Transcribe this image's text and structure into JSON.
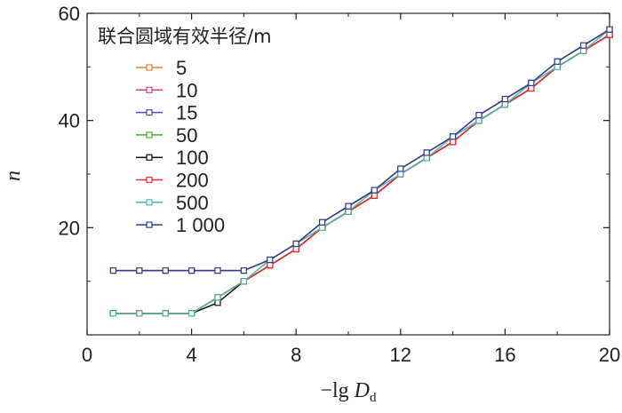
{
  "chart_data": {
    "type": "line",
    "title": "",
    "xlabel": {
      "prefix": "−lg ",
      "var": "D",
      "sub": "d"
    },
    "ylabel": "n",
    "xlim": [
      0,
      20
    ],
    "ylim": [
      0,
      60
    ],
    "xticks": [
      0,
      4,
      8,
      12,
      16,
      20
    ],
    "yticks": [
      20,
      40,
      60
    ],
    "legend_title": "联合圆域有效半径/m",
    "legend_position": "top-left",
    "series": [
      {
        "name": "5",
        "color": "#e8803a",
        "x": [
          1,
          2,
          3,
          4,
          5,
          6,
          7,
          8,
          9,
          10,
          11,
          12,
          13,
          14,
          15,
          16,
          17,
          18,
          19,
          20
        ],
        "y": [
          4,
          4,
          4,
          4,
          7,
          10,
          13,
          16,
          20,
          23,
          26,
          30,
          33,
          36,
          40,
          43,
          46,
          50,
          53,
          56
        ]
      },
      {
        "name": "10",
        "color": "#e0407a",
        "x": [
          1,
          2,
          3,
          4,
          5,
          6,
          7,
          8,
          9,
          10,
          11,
          12,
          13,
          14,
          15,
          16,
          17,
          18,
          19,
          20
        ],
        "y": [
          4,
          4,
          4,
          4,
          7,
          10,
          13,
          16,
          20,
          23,
          26,
          30,
          33,
          36,
          40,
          43,
          46,
          50,
          53,
          56
        ]
      },
      {
        "name": "15",
        "color": "#5a4aa8",
        "x": [
          1,
          2,
          3,
          4,
          5,
          6,
          7,
          8,
          9,
          10,
          11,
          12,
          13,
          14,
          15,
          16,
          17,
          18,
          19,
          20
        ],
        "y": [
          12,
          12,
          12,
          12,
          12,
          12,
          14,
          17,
          21,
          24,
          27,
          31,
          34,
          37,
          41,
          44,
          47,
          51,
          54,
          57
        ]
      },
      {
        "name": "50",
        "color": "#4aaa3a",
        "x": [
          1,
          2,
          3,
          4,
          5,
          6,
          7,
          8,
          9,
          10,
          11,
          12,
          13,
          14,
          15,
          16,
          17,
          18,
          19,
          20
        ],
        "y": [
          4,
          4,
          4,
          4,
          7,
          10,
          13,
          16,
          20,
          23,
          26,
          30,
          33,
          36,
          40,
          43,
          46,
          50,
          53,
          56
        ]
      },
      {
        "name": "100",
        "color": "#111111",
        "x": [
          1,
          2,
          3,
          4,
          5,
          6,
          7,
          8,
          9,
          10,
          11,
          12,
          13,
          14,
          15,
          16,
          17,
          18,
          19,
          20
        ],
        "y": [
          4,
          4,
          4,
          4,
          6,
          10,
          13,
          16,
          20,
          23,
          26,
          30,
          33,
          36,
          40,
          43,
          46,
          50,
          53,
          56
        ]
      },
      {
        "name": "200",
        "color": "#e83030",
        "x": [
          1,
          2,
          3,
          4,
          5,
          6,
          7,
          8,
          9,
          10,
          11,
          12,
          13,
          14,
          15,
          16,
          17,
          18,
          19,
          20
        ],
        "y": [
          4,
          4,
          4,
          4,
          7,
          10,
          13,
          16,
          20,
          23,
          26,
          30,
          33,
          36,
          40,
          43,
          46,
          50,
          53,
          56
        ]
      },
      {
        "name": "500",
        "color": "#4fb8a8",
        "x": [
          1,
          2,
          3,
          4,
          5,
          6,
          7,
          8,
          9,
          10,
          11,
          12,
          13,
          14,
          15,
          16,
          17,
          18,
          19,
          20
        ],
        "y": [
          4,
          4,
          4,
          4,
          7,
          10,
          14,
          17,
          20,
          23,
          27,
          30,
          33,
          37,
          40,
          43,
          47,
          50,
          53,
          57
        ]
      },
      {
        "name": "1 000",
        "color": "#343c8c",
        "x": [
          1,
          2,
          3,
          4,
          5,
          6,
          7,
          8,
          9,
          10,
          11,
          12,
          13,
          14,
          15,
          16,
          17,
          18,
          19,
          20
        ],
        "y": [
          12,
          12,
          12,
          12,
          12,
          12,
          14,
          17,
          21,
          24,
          27,
          31,
          34,
          37,
          41,
          44,
          47,
          51,
          54,
          57
        ]
      }
    ]
  }
}
